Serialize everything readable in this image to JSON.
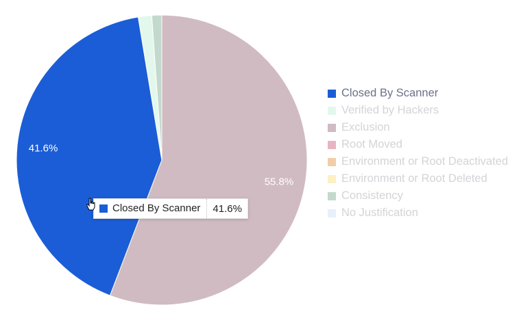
{
  "chart_data": {
    "type": "pie",
    "title": "",
    "slices": [
      {
        "name": "Closed By Scanner",
        "value": 41.6,
        "color": "#1b5dd6",
        "label": "41.6%",
        "active": true
      },
      {
        "name": "Verified by Hackers",
        "value": 1.5,
        "color": "#e3f8ec",
        "label": "",
        "active": false
      },
      {
        "name": "Exclusion",
        "value": 55.8,
        "color": "#d0bbc2",
        "label": "55.8%",
        "active": false
      },
      {
        "name": "Root Moved",
        "value": 0,
        "color": "#e8b4c1",
        "label": "",
        "active": false
      },
      {
        "name": "Environment or Root Deactivated",
        "value": 0,
        "color": "#f2cda8",
        "label": "",
        "active": false
      },
      {
        "name": "Environment or Root Deleted",
        "value": 0,
        "color": "#fdf0c4",
        "label": "",
        "active": false
      },
      {
        "name": "Consistency",
        "value": 1.1,
        "color": "#c3d9cd",
        "label": "",
        "active": false
      },
      {
        "name": "No Justification",
        "value": 0,
        "color": "#e8f0fc",
        "label": "",
        "active": false
      }
    ],
    "legend_position": "right",
    "tooltip": {
      "name": "Closed By Scanner",
      "value": "41.6%",
      "color": "#1b5dd6"
    }
  }
}
